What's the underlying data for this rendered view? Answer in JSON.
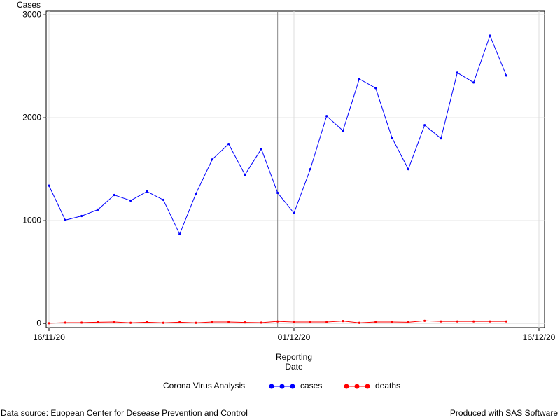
{
  "chart_data": {
    "type": "line",
    "y_label": "Cases",
    "x_label": [
      "Reporting",
      "Date"
    ],
    "legend_title": "Corona Virus Analysis",
    "footnote_left": "Data source: Euopean Center for Desease Prevention and Control",
    "footnote_right": "Produced with SAS Software",
    "x": [
      "2020-11-16",
      "2020-11-17",
      "2020-11-18",
      "2020-11-19",
      "2020-11-20",
      "2020-11-21",
      "2020-11-22",
      "2020-11-23",
      "2020-11-24",
      "2020-11-25",
      "2020-11-26",
      "2020-11-27",
      "2020-11-28",
      "2020-11-29",
      "2020-11-30",
      "2020-12-01",
      "2020-12-02",
      "2020-12-03",
      "2020-12-04",
      "2020-12-05",
      "2020-12-06",
      "2020-12-07",
      "2020-12-08",
      "2020-12-09",
      "2020-12-10",
      "2020-12-11",
      "2020-12-12",
      "2020-12-13",
      "2020-12-14"
    ],
    "series": [
      {
        "name": "cases",
        "color": "#0000ff",
        "values": [
          1340,
          1005,
          1045,
          1107,
          1249,
          1195,
          1283,
          1202,
          869,
          1263,
          1595,
          1745,
          1446,
          1697,
          1270,
          1073,
          1500,
          2016,
          1874,
          2376,
          2288,
          1806,
          1500,
          1928,
          1799,
          2437,
          2342,
          2797,
          2410
        ]
      },
      {
        "name": "deaths",
        "color": "#ff0000",
        "values": [
          2,
          8,
          8,
          12,
          14,
          6,
          12,
          6,
          12,
          6,
          14,
          14,
          10,
          8,
          20,
          14,
          14,
          14,
          24,
          6,
          14,
          14,
          12,
          26,
          20,
          20,
          20,
          20,
          20
        ]
      }
    ],
    "xlim": [
      "2020-11-16",
      "2020-12-16"
    ],
    "xticks": [
      {
        "value": "2020-11-16",
        "label": "16/11/20"
      },
      {
        "value": "2020-12-01",
        "label": "01/12/20"
      },
      {
        "value": "2020-12-16",
        "label": "16/12/20"
      }
    ],
    "ylim": [
      -40,
      3035
    ],
    "yticks": [
      0,
      1000,
      2000,
      3000
    ],
    "grid": true,
    "reference_line_x": "2020-11-30"
  }
}
